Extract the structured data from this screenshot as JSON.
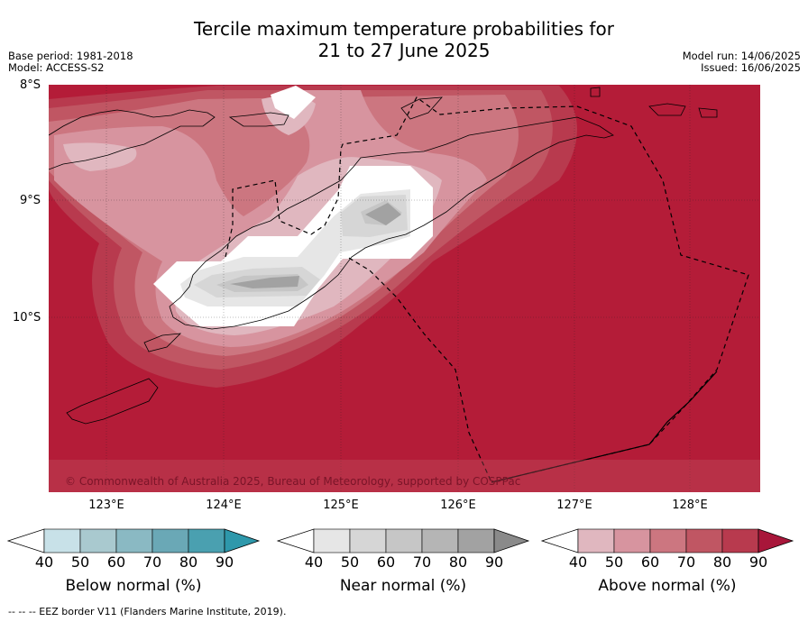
{
  "header": {
    "title_line1": "Tercile maximum temperature probabilities for",
    "title_line2": "21 to 27 June 2025",
    "base_period": "Base period: 1981-2018",
    "model": "Model: ACCESS-S2",
    "model_run": "Model run: 14/06/2025",
    "issued": "Issued: 16/06/2025"
  },
  "map": {
    "lat_labels": [
      "8°S",
      "9°S",
      "10°S"
    ],
    "lon_labels": [
      "123°E",
      "124°E",
      "125°E",
      "126°E",
      "127°E",
      "128°E"
    ],
    "copyright": "© Commonwealth of Australia 2025, Bureau of Meteorology, supported by COSPPac",
    "colors": {
      "above_base": "#b41c38",
      "land_outline": "#000000",
      "eez_border": "#000000"
    }
  },
  "legend": {
    "ticks": [
      "40",
      "50",
      "60",
      "70",
      "80",
      "90"
    ],
    "below": {
      "label": "Below normal (%)",
      "colors": [
        "#c8e1e8",
        "#a9c9cf",
        "#8ab9c3",
        "#6aa8b6",
        "#4aa0b0",
        "#2e98ab"
      ]
    },
    "near": {
      "label": "Near normal (%)",
      "colors": [
        "#e6e6e6",
        "#d6d6d6",
        "#c6c6c6",
        "#b5b5b5",
        "#a2a2a2",
        "#8a8a8a"
      ]
    },
    "above": {
      "label": "Above normal (%)",
      "colors": [
        "#e0b7bf",
        "#d7949f",
        "#cc7680",
        "#c05663",
        "#b83a4e",
        "#a8163a"
      ]
    }
  },
  "footer": {
    "text": "--  --  -- EEZ border V11 (Flanders Marine Institute, 2019)."
  }
}
